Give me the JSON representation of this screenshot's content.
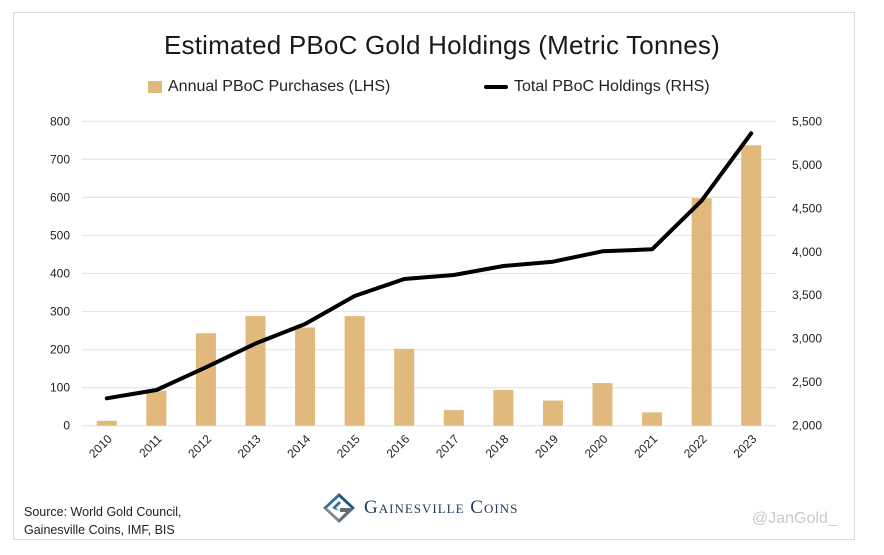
{
  "chart_data": {
    "type": "bar+line",
    "title": "Estimated PBoC Gold Holdings (Metric Tonnes)",
    "categories": [
      "2010",
      "2011",
      "2012",
      "2013",
      "2014",
      "2015",
      "2016",
      "2017",
      "2018",
      "2019",
      "2020",
      "2021",
      "2022",
      "2023"
    ],
    "series": [
      {
        "name": "Annual PBoC Purchases (LHS)",
        "type": "bar",
        "axis": "left",
        "color": "#E2B97C",
        "values": [
          13,
          92,
          243,
          288,
          258,
          288,
          202,
          41,
          94,
          66,
          112,
          35,
          598,
          737
        ]
      },
      {
        "name": "Total PBoC Holdings (RHS)",
        "type": "line",
        "axis": "right",
        "color": "#000000",
        "values": [
          2315,
          2410,
          2672,
          2945,
          3169,
          3491,
          3687,
          3733,
          3836,
          3886,
          4005,
          4028,
          4587,
          5362
        ]
      }
    ],
    "left_axis": {
      "ylim": [
        0,
        800
      ],
      "ticks": [
        0,
        100,
        200,
        300,
        400,
        500,
        600,
        700,
        800
      ],
      "tick_labels": [
        "0",
        "100",
        "200",
        "300",
        "400",
        "500",
        "600",
        "700",
        "800"
      ]
    },
    "right_axis": {
      "ylim": [
        2000,
        5500
      ],
      "ticks": [
        2000,
        2500,
        3000,
        3500,
        4000,
        4500,
        5000,
        5500
      ],
      "tick_labels": [
        "2,000",
        "2,500",
        "3,000",
        "3,500",
        "4,000",
        "4,500",
        "5,000",
        "5,500"
      ]
    },
    "xlabel": "",
    "ylabel": "",
    "grid": true,
    "legend_position": "top-center",
    "x_tick_rotation": "-45deg"
  },
  "footer": {
    "source_line1": "Source: World Gold Council,",
    "source_line2": "Gainesville Coins, IMF, BIS",
    "logo_text": "Gainesville Coins",
    "logo_icon": "gainesville-coins-logo-icon",
    "watermark": "@JanGold_"
  }
}
